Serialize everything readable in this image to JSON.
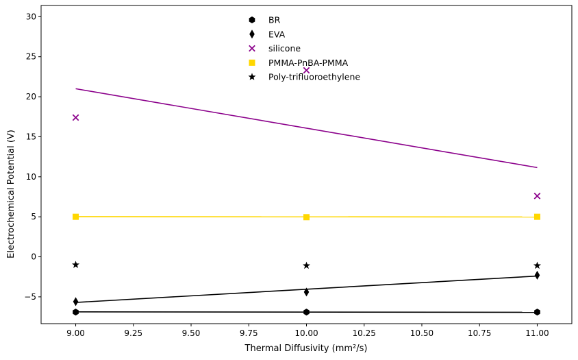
{
  "chart_data": {
    "type": "scatter",
    "xlabel": "Thermal Diffusivity (mm²/s)",
    "ylabel": "Electrochemical Potential (V)",
    "xlim": [
      8.85,
      11.15
    ],
    "ylim": [
      -8.35,
      31.4
    ],
    "x_ticks": [
      9.0,
      9.25,
      9.5,
      9.75,
      10.0,
      10.25,
      10.5,
      10.75,
      11.0
    ],
    "x_tick_labels": [
      "9.00",
      "9.25",
      "9.50",
      "9.75",
      "10.00",
      "10.25",
      "10.50",
      "10.75",
      "11.00"
    ],
    "y_ticks": [
      -5,
      0,
      5,
      10,
      15,
      20,
      25,
      30
    ],
    "y_tick_labels": [
      "−5",
      "0",
      "5",
      "10",
      "15",
      "20",
      "25",
      "30"
    ],
    "grid": false,
    "legend_position": "top-center",
    "series": [
      {
        "name": "BR",
        "marker": "hexagon",
        "color": "#000000",
        "x": [
          9,
          10,
          11
        ],
        "y": [
          -6.9,
          -6.9,
          -6.9
        ],
        "fit": {
          "x": [
            9,
            11
          ],
          "y": [
            -6.88,
            -6.93
          ]
        }
      },
      {
        "name": "EVA",
        "marker": "thin_diamond",
        "color": "#000000",
        "x": [
          9,
          10,
          11
        ],
        "y": [
          -5.6,
          -4.4,
          -2.3
        ],
        "fit": {
          "x": [
            9,
            11
          ],
          "y": [
            -5.7,
            -2.4
          ]
        }
      },
      {
        "name": "silicone",
        "marker": "x",
        "color": "#8b008b",
        "x": [
          9,
          10,
          11
        ],
        "y": [
          17.4,
          23.3,
          7.6
        ],
        "fit": {
          "x": [
            9,
            11
          ],
          "y": [
            21.0,
            11.15
          ]
        }
      },
      {
        "name": "PMMA-PnBA-PMMA",
        "marker": "square",
        "color": "#ffd700",
        "x": [
          9,
          10,
          11
        ],
        "y": [
          5.0,
          4.95,
          5.0
        ],
        "fit": {
          "x": [
            9,
            11
          ],
          "y": [
            5.02,
            4.98
          ]
        }
      },
      {
        "name": "Poly-trifluoroethylene",
        "marker": "star",
        "color": "#000000",
        "x": [
          9,
          10,
          11
        ],
        "y": [
          -1.0,
          -1.1,
          -1.1
        ],
        "fit": null
      }
    ]
  }
}
